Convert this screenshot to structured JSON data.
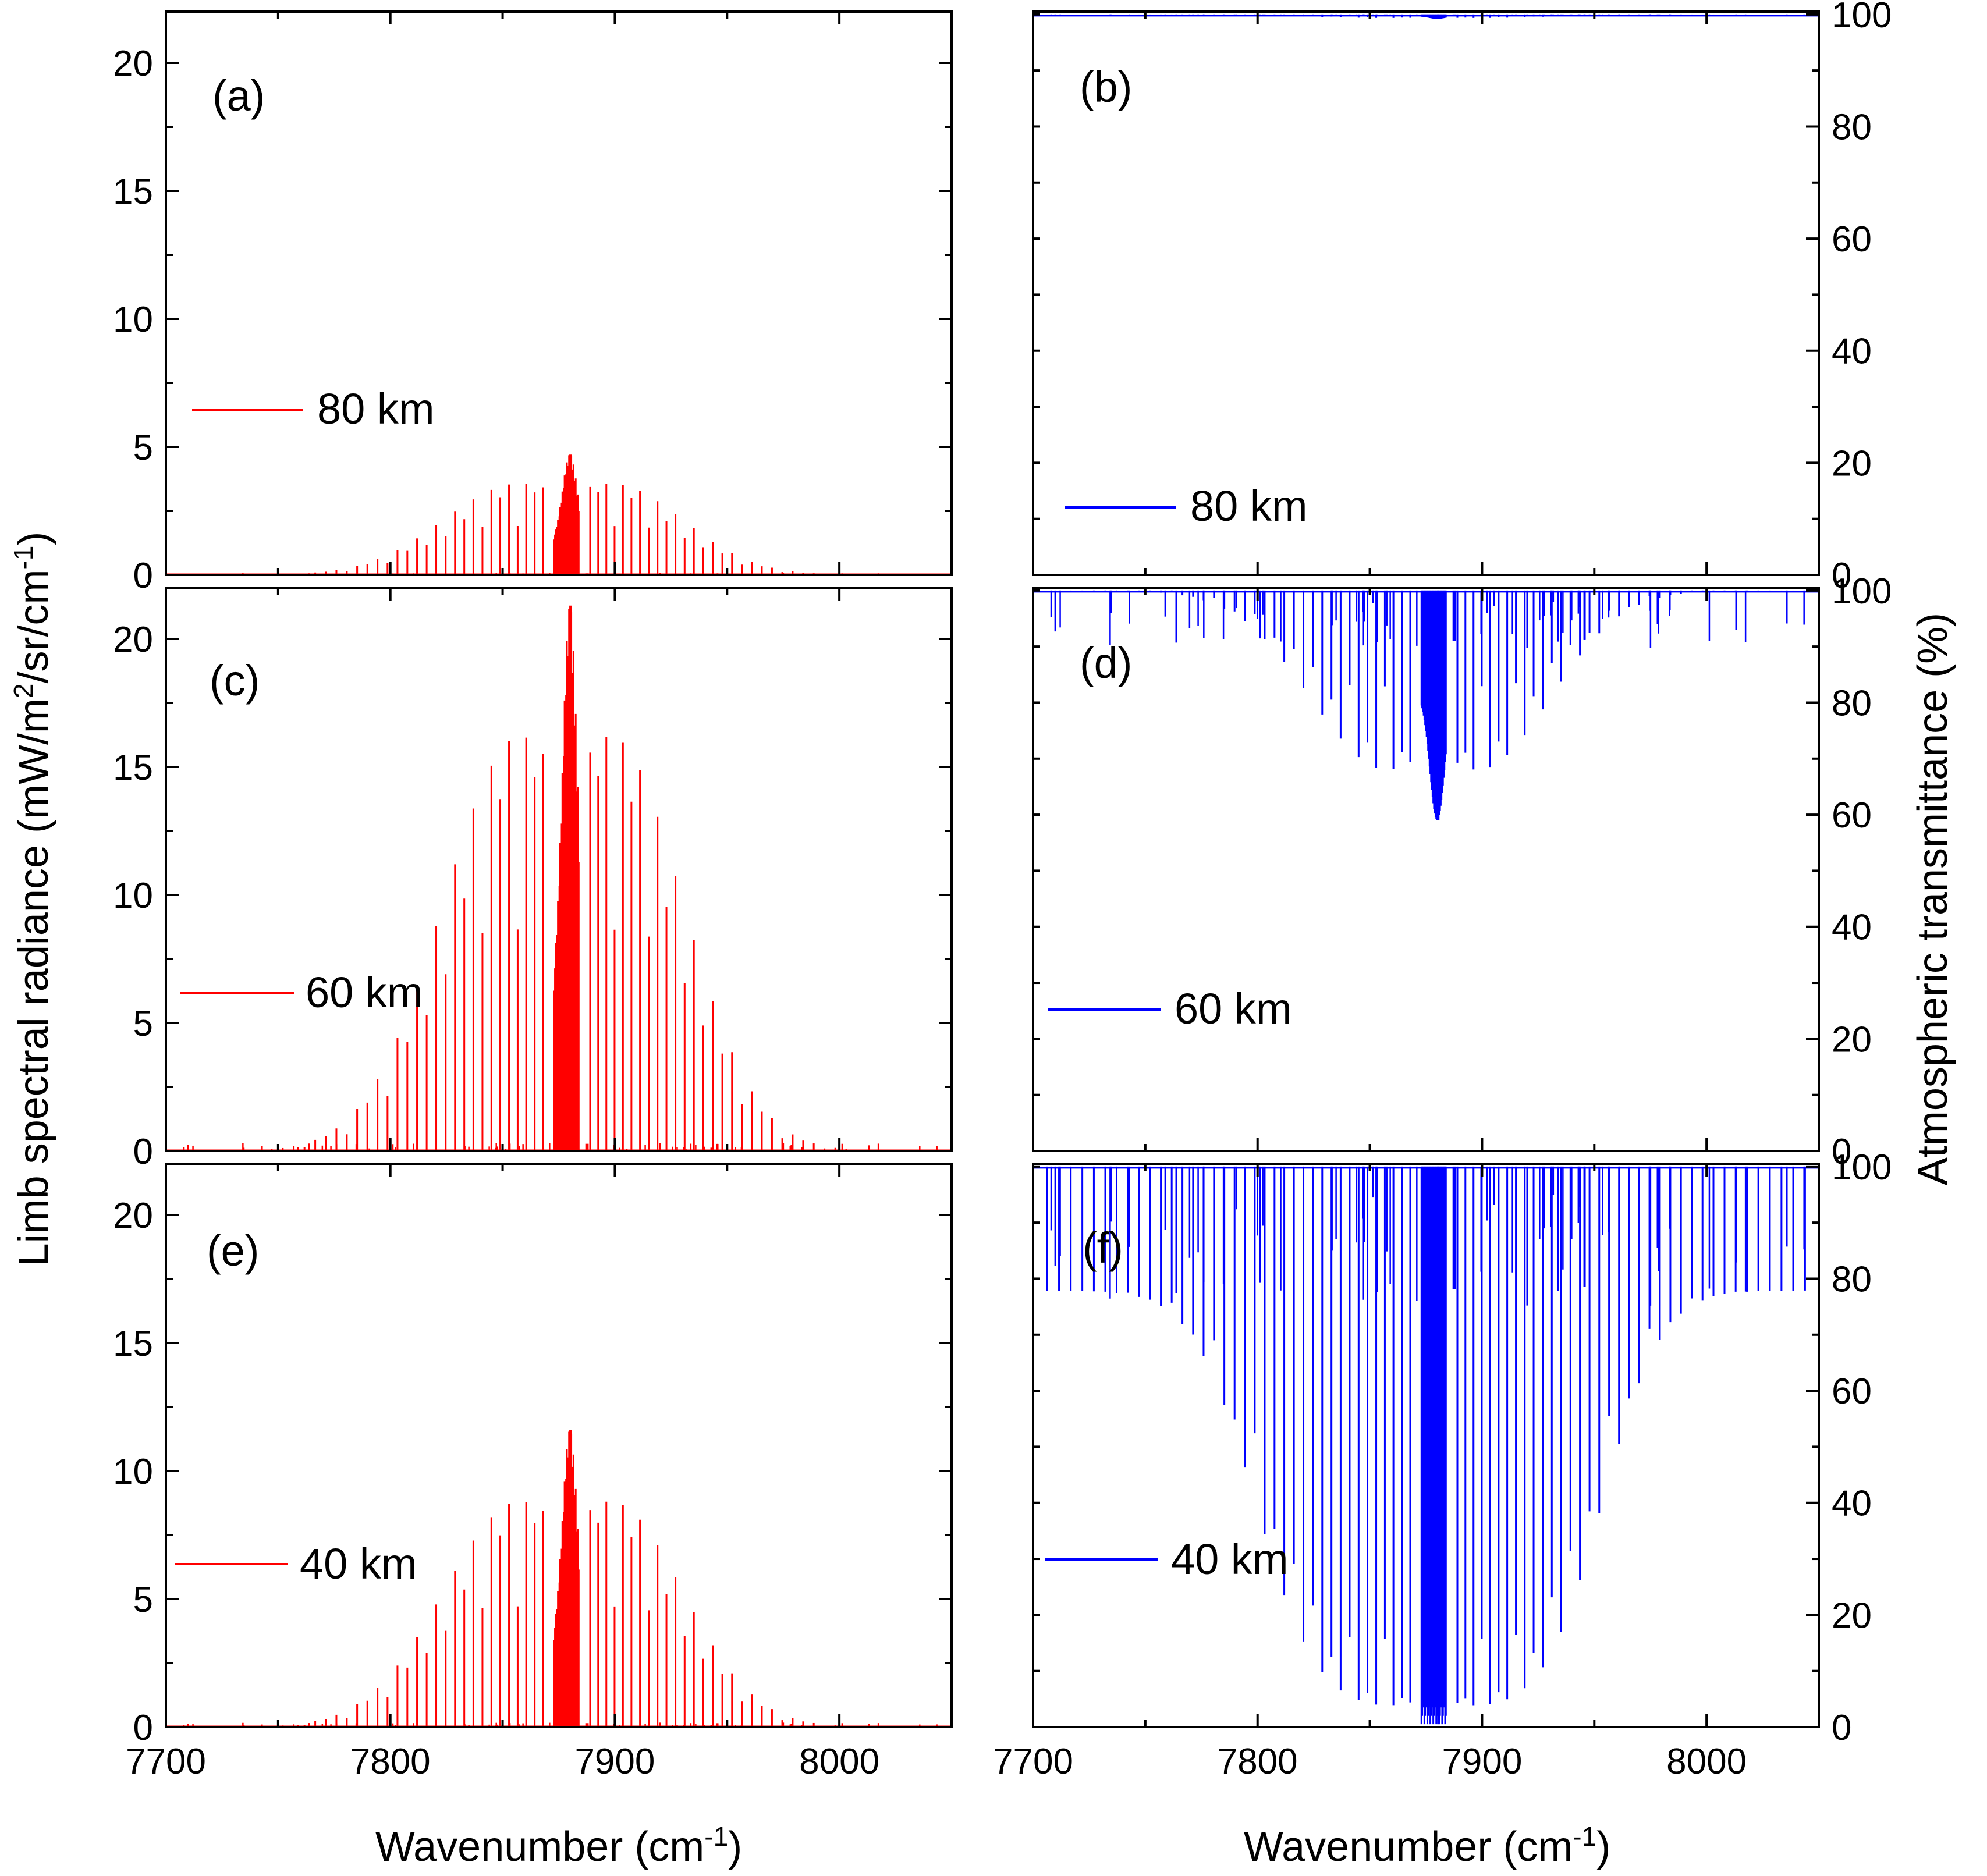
{
  "figure": {
    "left_ylabel": {
      "main": "Limb spectral radiance (mW/m",
      "sup1": "2",
      "mid": "/sr/cm",
      "sup2": "-1",
      "end": ")"
    },
    "right_ylabel": "Atmospheric transmittance (%)",
    "xlabel": {
      "main": "Wavenumber (cm",
      "sup": "-1",
      "end": ")"
    },
    "xlabel_right": {
      "main": "Wavenumber (cm",
      "sup": "-1",
      "end": ")"
    }
  },
  "colors": {
    "radiance": "#ff0000",
    "transmittance": "#0000ff",
    "frame": "#000000"
  },
  "chart_data": [
    {
      "id": "a",
      "tag": "(a)",
      "type": "line",
      "quantity": "radiance",
      "series": [
        {
          "name": "80 km",
          "altitude": "80 km",
          "peak": 4.7,
          "center_peak": 4.7
        }
      ],
      "legend": "80 km",
      "xlim": [
        7700,
        8050
      ],
      "ylim": [
        0,
        22
      ],
      "yticks": [
        0,
        5,
        10,
        15,
        20
      ],
      "ytick_labels": [
        "0",
        "5",
        "10",
        "15",
        "20"
      ],
      "xticks": [
        7700,
        7800,
        7900,
        8000
      ],
      "xtick_labels": [
        "7700",
        "7800",
        "7900",
        "8000"
      ],
      "show_xtick_labels": false,
      "yaxis_side": "left",
      "xlabel": "",
      "ylabel": "Limb spectral radiance"
    },
    {
      "id": "b",
      "tag": "(b)",
      "type": "line",
      "quantity": "transmittance",
      "series": [
        {
          "name": "80 km",
          "altitude": "80 km",
          "min": 99.2
        }
      ],
      "legend": "80 km",
      "xlim": [
        7700,
        8050
      ],
      "ylim": [
        0,
        100.5
      ],
      "yticks": [
        0,
        20,
        40,
        60,
        80,
        100
      ],
      "ytick_labels": [
        "0",
        "20",
        "40",
        "60",
        "80",
        "100"
      ],
      "xticks": [
        7700,
        7800,
        7900,
        8000
      ],
      "xtick_labels": [
        "7700",
        "7800",
        "7900",
        "8000"
      ],
      "show_xtick_labels": false,
      "yaxis_side": "right",
      "xlabel": "",
      "ylabel": "Atmospheric transmittance (%)"
    },
    {
      "id": "c",
      "tag": "(c)",
      "type": "line",
      "quantity": "radiance",
      "series": [
        {
          "name": "60 km",
          "altitude": "60 km",
          "peak": 21.3,
          "center_peak": 21.3
        }
      ],
      "legend": "60 km",
      "xlim": [
        7700,
        8050
      ],
      "ylim": [
        0,
        22
      ],
      "yticks": [
        0,
        5,
        10,
        15,
        20
      ],
      "ytick_labels": [
        "0",
        "5",
        "10",
        "15",
        "20"
      ],
      "xticks": [
        7700,
        7800,
        7900,
        8000
      ],
      "xtick_labels": [
        "7700",
        "7800",
        "7900",
        "8000"
      ],
      "show_xtick_labels": false,
      "yaxis_side": "left",
      "xlabel": "",
      "ylabel": "Limb spectral radiance"
    },
    {
      "id": "d",
      "tag": "(d)",
      "type": "line",
      "quantity": "transmittance",
      "series": [
        {
          "name": "60 km",
          "altitude": "60 km",
          "min": 59
        }
      ],
      "legend": "60 km",
      "xlim": [
        7700,
        8050
      ],
      "ylim": [
        0,
        100.5
      ],
      "yticks": [
        0,
        20,
        40,
        60,
        80,
        100
      ],
      "ytick_labels": [
        "0",
        "20",
        "40",
        "60",
        "80",
        "100"
      ],
      "xticks": [
        7700,
        7800,
        7900,
        8000
      ],
      "xtick_labels": [
        "7700",
        "7800",
        "7900",
        "8000"
      ],
      "show_xtick_labels": false,
      "yaxis_side": "right",
      "xlabel": "",
      "ylabel": "Atmospheric transmittance (%)"
    },
    {
      "id": "e",
      "tag": "(e)",
      "type": "line",
      "quantity": "radiance",
      "series": [
        {
          "name": "40 km",
          "altitude": "40 km",
          "peak": 11.6,
          "center_peak": 11.6
        }
      ],
      "legend": "40 km",
      "xlim": [
        7700,
        8050
      ],
      "ylim": [
        0,
        22
      ],
      "yticks": [
        0,
        5,
        10,
        15,
        20
      ],
      "ytick_labels": [
        "0",
        "5",
        "10",
        "15",
        "20"
      ],
      "xticks": [
        7700,
        7800,
        7900,
        8000
      ],
      "xtick_labels": [
        "7700",
        "7800",
        "7900",
        "8000"
      ],
      "show_xtick_labels": true,
      "yaxis_side": "left",
      "xlabel": "Wavenumber (cm-1)",
      "ylabel": "Limb spectral radiance"
    },
    {
      "id": "f",
      "tag": "(f)",
      "type": "line",
      "quantity": "transmittance",
      "series": [
        {
          "name": "40 km",
          "altitude": "40 km",
          "min": 0.5
        }
      ],
      "legend": "40 km",
      "xlim": [
        7700,
        8050
      ],
      "ylim": [
        0,
        100.5
      ],
      "yticks": [
        0,
        20,
        40,
        60,
        80,
        100
      ],
      "ytick_labels": [
        "0",
        "20",
        "40",
        "60",
        "80",
        "100"
      ],
      "xticks": [
        7700,
        7800,
        7900,
        8000
      ],
      "xtick_labels": [
        "7700",
        "7800",
        "7900",
        "8000"
      ],
      "show_xtick_labels": true,
      "yaxis_side": "right",
      "xlabel": "Wavenumber (cm-1)",
      "ylabel": "Atmospheric transmittance (%)"
    }
  ]
}
